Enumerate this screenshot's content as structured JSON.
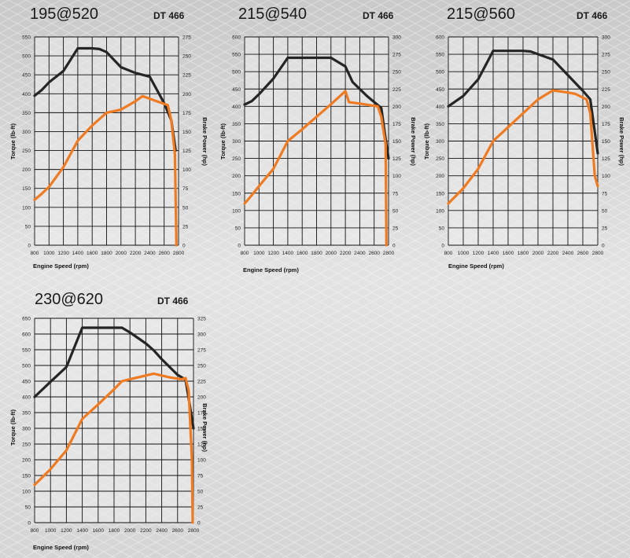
{
  "colors": {
    "torque": "#252525",
    "power": "#ee7a22",
    "grid": "#111111",
    "background": "#dedede"
  },
  "chart_data": [
    {
      "type": "line",
      "title": "195@520",
      "model": "DT 466",
      "xlabel": "Engine Speed (rpm)",
      "ylabel_left": "Torque (lb-ft)",
      "ylabel_right": "Brake Power (hp)",
      "x_ticks": [
        800,
        1000,
        1200,
        1400,
        1600,
        1800,
        2000,
        2200,
        2400,
        2600,
        2800
      ],
      "y_left_ticks": [
        0,
        50,
        100,
        150,
        200,
        250,
        300,
        350,
        400,
        450,
        500,
        550
      ],
      "y_right_ticks": [
        0,
        25,
        50,
        75,
        100,
        125,
        150,
        175,
        200,
        225,
        250,
        275
      ],
      "xlim": [
        800,
        2800
      ],
      "ylim_left": [
        0,
        550
      ],
      "ylim_right": [
        0,
        275
      ],
      "series": [
        {
          "name": "Torque",
          "axis": "left",
          "color": "#252525",
          "points": [
            [
              800,
              395
            ],
            [
              900,
              410
            ],
            [
              1000,
              430
            ],
            [
              1200,
              460
            ],
            [
              1300,
              490
            ],
            [
              1400,
              520
            ],
            [
              1600,
              520
            ],
            [
              1700,
              518
            ],
            [
              1800,
              510
            ],
            [
              2000,
              470
            ],
            [
              2200,
              455
            ],
            [
              2400,
              445
            ],
            [
              2600,
              375
            ],
            [
              2700,
              330
            ],
            [
              2760,
              250
            ]
          ]
        },
        {
          "name": "Brake Power",
          "axis": "right",
          "color": "#ee7a22",
          "points": [
            [
              800,
              60
            ],
            [
              900,
              68
            ],
            [
              1000,
              77
            ],
            [
              1200,
              103
            ],
            [
              1400,
              138
            ],
            [
              1600,
              158
            ],
            [
              1800,
              175
            ],
            [
              2000,
              179
            ],
            [
              2200,
              190
            ],
            [
              2300,
              197
            ],
            [
              2500,
              190
            ],
            [
              2650,
              185
            ],
            [
              2700,
              165
            ],
            [
              2750,
              120
            ],
            [
              2770,
              0
            ]
          ]
        }
      ]
    },
    {
      "type": "line",
      "title": "215@540",
      "model": "DT 466",
      "xlabel": "Engine Speed (rpm)",
      "ylabel_left": "Torque (lb-ft)",
      "ylabel_right": "Brake Power (hp)",
      "x_ticks": [
        800,
        1000,
        1200,
        1400,
        1600,
        1800,
        2000,
        2200,
        2400,
        2600,
        2800
      ],
      "y_left_ticks": [
        0,
        50,
        100,
        150,
        200,
        250,
        300,
        350,
        400,
        450,
        500,
        550,
        600
      ],
      "y_right_ticks": [
        0,
        25,
        50,
        75,
        100,
        125,
        150,
        175,
        200,
        225,
        250,
        275,
        300
      ],
      "xlim": [
        800,
        2800
      ],
      "ylim_left": [
        0,
        600
      ],
      "ylim_right": [
        0,
        300
      ],
      "series": [
        {
          "name": "Torque",
          "axis": "left",
          "color": "#252525",
          "points": [
            [
              800,
              405
            ],
            [
              900,
              415
            ],
            [
              1000,
              435
            ],
            [
              1200,
              480
            ],
            [
              1400,
              540
            ],
            [
              2000,
              540
            ],
            [
              2200,
              515
            ],
            [
              2300,
              470
            ],
            [
              2500,
              430
            ],
            [
              2700,
              395
            ],
            [
              2750,
              320
            ],
            [
              2800,
              250
            ]
          ]
        },
        {
          "name": "Brake Power",
          "axis": "right",
          "color": "#ee7a22",
          "points": [
            [
              800,
              60
            ],
            [
              900,
              72
            ],
            [
              1000,
              85
            ],
            [
              1200,
              110
            ],
            [
              1400,
              150
            ],
            [
              1600,
              167
            ],
            [
              1800,
              185
            ],
            [
              2000,
              203
            ],
            [
              2200,
              222
            ],
            [
              2250,
              206
            ],
            [
              2400,
              204
            ],
            [
              2650,
              200
            ],
            [
              2700,
              185
            ],
            [
              2760,
              145
            ],
            [
              2770,
              0
            ]
          ]
        }
      ]
    },
    {
      "type": "line",
      "title": "215@560",
      "model": "DT 466",
      "xlabel": "Engine Speed (rpm)",
      "ylabel_left": "Torque (lb-ft)",
      "ylabel_right": "Brake Power (hp)",
      "x_ticks": [
        800,
        1000,
        1200,
        1400,
        1600,
        1800,
        2000,
        2200,
        2400,
        2600,
        2800
      ],
      "y_left_ticks": [
        0,
        50,
        100,
        150,
        200,
        250,
        300,
        350,
        400,
        450,
        500,
        550,
        600
      ],
      "y_right_ticks": [
        0,
        25,
        50,
        75,
        100,
        125,
        150,
        175,
        200,
        225,
        250,
        275,
        300
      ],
      "xlim": [
        800,
        2800
      ],
      "ylim_left": [
        0,
        600
      ],
      "ylim_right": [
        0,
        300
      ],
      "series": [
        {
          "name": "Torque",
          "axis": "left",
          "color": "#252525",
          "points": [
            [
              800,
              400
            ],
            [
              1000,
              430
            ],
            [
              1200,
              478
            ],
            [
              1400,
              560
            ],
            [
              1800,
              560
            ],
            [
              1900,
              558
            ],
            [
              2200,
              535
            ],
            [
              2400,
              490
            ],
            [
              2600,
              445
            ],
            [
              2700,
              420
            ],
            [
              2800,
              265
            ]
          ]
        },
        {
          "name": "Brake Power",
          "axis": "right",
          "color": "#ee7a22",
          "points": [
            [
              800,
              60
            ],
            [
              1000,
              82
            ],
            [
              1200,
              110
            ],
            [
              1400,
              150
            ],
            [
              1600,
              170
            ],
            [
              1800,
              190
            ],
            [
              2000,
              210
            ],
            [
              2200,
              223
            ],
            [
              2400,
              220
            ],
            [
              2500,
              218
            ],
            [
              2650,
              210
            ],
            [
              2700,
              190
            ],
            [
              2760,
              100
            ],
            [
              2800,
              85
            ]
          ]
        }
      ]
    },
    {
      "type": "line",
      "title": "230@620",
      "model": "DT 466",
      "xlabel": "Engine Speed (rpm)",
      "ylabel_left": "Torque (lb-ft)",
      "ylabel_right": "Brake Power (hp)",
      "x_ticks": [
        800,
        1000,
        1200,
        1400,
        1600,
        1800,
        2000,
        2200,
        2400,
        2600,
        2800
      ],
      "y_left_ticks": [
        0,
        50,
        100,
        150,
        200,
        250,
        300,
        350,
        400,
        450,
        500,
        550,
        600,
        650
      ],
      "y_right_ticks": [
        0,
        25,
        50,
        75,
        100,
        125,
        150,
        175,
        200,
        225,
        250,
        275,
        300,
        325
      ],
      "xlim": [
        800,
        2800
      ],
      "ylim_left": [
        0,
        650
      ],
      "ylim_right": [
        0,
        325
      ],
      "series": [
        {
          "name": "Torque",
          "axis": "left",
          "color": "#252525",
          "points": [
            [
              800,
              400
            ],
            [
              1000,
              448
            ],
            [
              1200,
              495
            ],
            [
              1400,
              620
            ],
            [
              1900,
              620
            ],
            [
              2000,
              605
            ],
            [
              2200,
              570
            ],
            [
              2300,
              548
            ],
            [
              2400,
              520
            ],
            [
              2600,
              470
            ],
            [
              2700,
              455
            ],
            [
              2750,
              380
            ],
            [
              2800,
              300
            ]
          ]
        },
        {
          "name": "Brake Power",
          "axis": "right",
          "color": "#ee7a22",
          "points": [
            [
              800,
              60
            ],
            [
              1000,
              85
            ],
            [
              1200,
              115
            ],
            [
              1400,
              165
            ],
            [
              1600,
              188
            ],
            [
              1800,
              212
            ],
            [
              1900,
              225
            ],
            [
              2000,
              228
            ],
            [
              2200,
              234
            ],
            [
              2300,
              237
            ],
            [
              2400,
              234
            ],
            [
              2500,
              231
            ],
            [
              2650,
              228
            ],
            [
              2700,
              230
            ],
            [
              2740,
              210
            ],
            [
              2780,
              100
            ],
            [
              2790,
              0
            ]
          ]
        }
      ]
    }
  ]
}
